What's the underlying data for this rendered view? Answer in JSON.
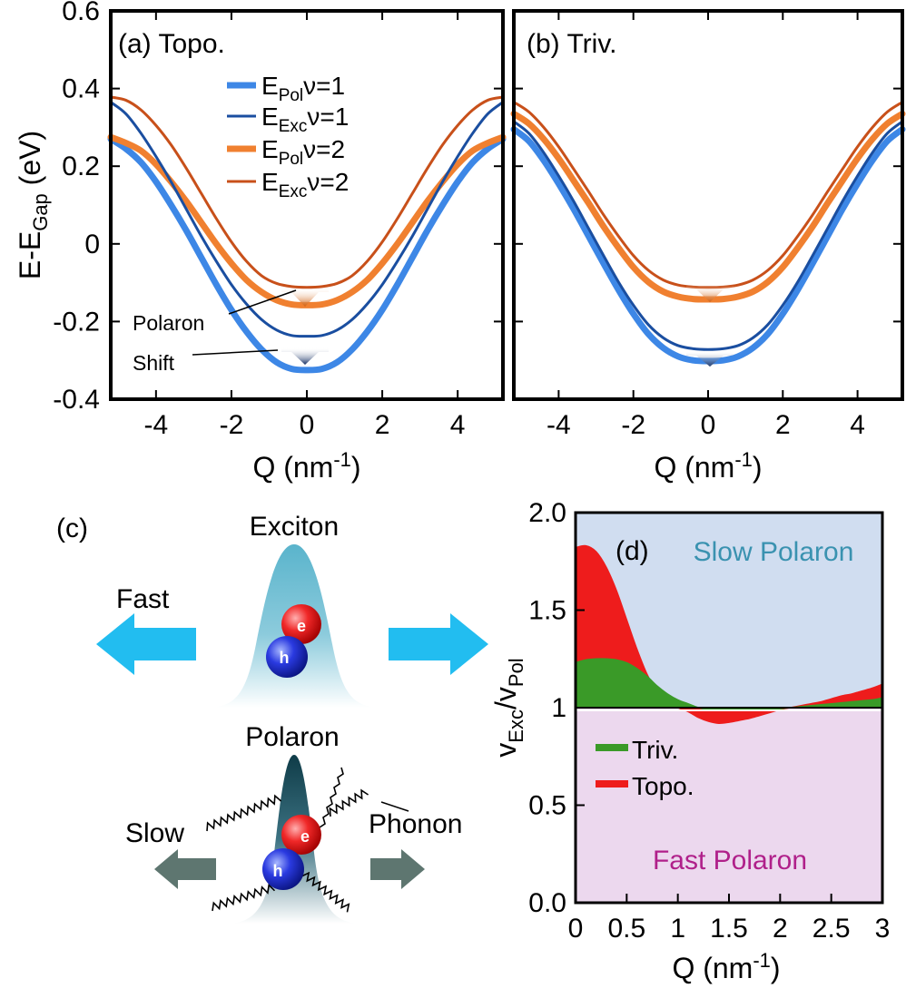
{
  "chart_data": [
    {
      "panel_id": "a",
      "type": "line",
      "tag": "(a) Topo.",
      "xlabel": "Q (nm",
      "xlabel_sup": "-1",
      "xlabel_close": ")",
      "ylabel_base": "E-E",
      "ylabel_sub": "Gap",
      "ylabel_unit": " (eV)",
      "xlim": [
        -5.2,
        5.2
      ],
      "ylim": [
        -0.4,
        0.6
      ],
      "xticks": [
        -4,
        -2,
        0,
        2,
        4
      ],
      "xtick_labels": [
        "-4",
        "-2",
        "0",
        "2",
        "4"
      ],
      "yticks": [
        -0.4,
        -0.2,
        0,
        0.2,
        0.4,
        0.6
      ],
      "ytick_labels": [
        "-0.4",
        "-0.2",
        "0",
        "0.2",
        "0.4",
        "0.6"
      ],
      "x": [
        -5.2,
        -4.8,
        -4.4,
        -4.0,
        -3.6,
        -3.2,
        -2.8,
        -2.4,
        -2.0,
        -1.6,
        -1.2,
        -0.8,
        -0.4,
        0.0,
        0.4,
        0.8,
        1.2,
        1.6,
        2.0,
        2.4,
        2.8,
        3.2,
        3.6,
        4.0,
        4.4,
        4.8,
        5.2
      ],
      "series": [
        {
          "name": "E_Pol ν=1",
          "label_base": "E",
          "label_sub": "Pol",
          "label_rest": "ν=1",
          "color": "#3d87e6",
          "width": 7,
          "values": [
            0.27,
            0.245,
            0.21,
            0.16,
            0.1,
            0.035,
            -0.035,
            -0.105,
            -0.17,
            -0.226,
            -0.272,
            -0.305,
            -0.322,
            -0.325,
            -0.322,
            -0.305,
            -0.272,
            -0.226,
            -0.17,
            -0.105,
            -0.035,
            0.035,
            0.1,
            0.16,
            0.21,
            0.245,
            0.27
          ]
        },
        {
          "name": "E_Exc ν=1",
          "label_base": "E",
          "label_sub": "Exc",
          "label_rest": "ν=1",
          "color": "#1a4ea0",
          "width": 3,
          "values": [
            0.365,
            0.335,
            0.285,
            0.225,
            0.16,
            0.09,
            0.02,
            -0.045,
            -0.105,
            -0.155,
            -0.195,
            -0.222,
            -0.236,
            -0.238,
            -0.236,
            -0.222,
            -0.195,
            -0.155,
            -0.105,
            -0.045,
            0.02,
            0.09,
            0.16,
            0.225,
            0.285,
            0.335,
            0.365
          ]
        },
        {
          "name": "E_Pol ν=2",
          "label_base": "E",
          "label_sub": "Pol",
          "label_rest": "ν=2",
          "color": "#f08030",
          "width": 7,
          "values": [
            0.275,
            0.26,
            0.24,
            0.205,
            0.16,
            0.11,
            0.055,
            0.0,
            -0.05,
            -0.093,
            -0.124,
            -0.145,
            -0.156,
            -0.158,
            -0.156,
            -0.145,
            -0.124,
            -0.093,
            -0.05,
            0.0,
            0.055,
            0.11,
            0.16,
            0.205,
            0.24,
            0.26,
            0.275
          ]
        },
        {
          "name": "E_Exc ν=2",
          "label_base": "E",
          "label_sub": "Exc",
          "label_rest": "ν=2",
          "color": "#c8501a",
          "width": 3,
          "values": [
            0.378,
            0.37,
            0.345,
            0.305,
            0.255,
            0.195,
            0.13,
            0.065,
            0.005,
            -0.045,
            -0.082,
            -0.102,
            -0.11,
            -0.112,
            -0.11,
            -0.102,
            -0.082,
            -0.045,
            0.005,
            0.065,
            0.13,
            0.195,
            0.255,
            0.305,
            0.345,
            0.37,
            0.378
          ]
        }
      ],
      "annotations": [
        "Polaron",
        "Shift"
      ]
    },
    {
      "panel_id": "b",
      "type": "line",
      "tag": "(b) Triv.",
      "xlabel": "Q (nm",
      "xlabel_sup": "-1",
      "xlabel_close": ")",
      "xlim": [
        -5.2,
        5.2
      ],
      "ylim": [
        -0.4,
        0.6
      ],
      "xticks": [
        -4,
        -2,
        0,
        2,
        4
      ],
      "xtick_labels": [
        "-4",
        "-2",
        "0",
        "2",
        "4"
      ],
      "x": [
        -5.2,
        -4.8,
        -4.4,
        -4.0,
        -3.6,
        -3.2,
        -2.8,
        -2.4,
        -2.0,
        -1.6,
        -1.2,
        -0.8,
        -0.4,
        0.0,
        0.4,
        0.8,
        1.2,
        1.6,
        2.0,
        2.4,
        2.8,
        3.2,
        3.6,
        4.0,
        4.4,
        4.8,
        5.2
      ],
      "series": [
        {
          "name": "E_Pol ν=1",
          "color": "#3d87e6",
          "width": 7,
          "values": [
            0.295,
            0.265,
            0.215,
            0.155,
            0.09,
            0.02,
            -0.05,
            -0.118,
            -0.18,
            -0.232,
            -0.268,
            -0.29,
            -0.3,
            -0.302,
            -0.3,
            -0.29,
            -0.268,
            -0.232,
            -0.18,
            -0.118,
            -0.05,
            0.02,
            0.09,
            0.155,
            0.215,
            0.265,
            0.295
          ]
        },
        {
          "name": "E_Exc ν=1",
          "color": "#1a4ea0",
          "width": 3,
          "values": [
            0.315,
            0.285,
            0.235,
            0.175,
            0.11,
            0.04,
            -0.03,
            -0.098,
            -0.158,
            -0.208,
            -0.242,
            -0.262,
            -0.27,
            -0.272,
            -0.27,
            -0.262,
            -0.242,
            -0.208,
            -0.158,
            -0.098,
            -0.03,
            0.04,
            0.11,
            0.175,
            0.235,
            0.285,
            0.315
          ]
        },
        {
          "name": "E_Pol ν=2",
          "color": "#f08030",
          "width": 7,
          "values": [
            0.335,
            0.31,
            0.27,
            0.22,
            0.163,
            0.105,
            0.045,
            -0.01,
            -0.06,
            -0.098,
            -0.123,
            -0.136,
            -0.142,
            -0.143,
            -0.142,
            -0.136,
            -0.123,
            -0.098,
            -0.06,
            -0.01,
            0.045,
            0.105,
            0.163,
            0.22,
            0.27,
            0.31,
            0.335
          ]
        },
        {
          "name": "E_Exc ν=2",
          "color": "#c8501a",
          "width": 3,
          "values": [
            0.365,
            0.34,
            0.3,
            0.25,
            0.193,
            0.135,
            0.075,
            0.02,
            -0.03,
            -0.068,
            -0.093,
            -0.106,
            -0.111,
            -0.112,
            -0.111,
            -0.106,
            -0.093,
            -0.068,
            -0.03,
            0.02,
            0.075,
            0.135,
            0.193,
            0.25,
            0.3,
            0.34,
            0.365
          ]
        }
      ]
    },
    {
      "panel_id": "d",
      "type": "area",
      "tag": "(d)",
      "xlabel": "Q (nm",
      "xlabel_sup": "-1",
      "xlabel_close": ")",
      "ylabel_v1": "v",
      "ylabel_sub1": "Exc",
      "ylabel_slash": "/v",
      "ylabel_sub2": "Pol",
      "xlim": [
        0,
        3
      ],
      "ylim": [
        0,
        2
      ],
      "xticks": [
        0,
        0.5,
        1,
        1.5,
        2,
        2.5,
        3
      ],
      "xtick_labels": [
        "0",
        "0.5",
        "1",
        "1.5",
        "2",
        "2.5",
        "3"
      ],
      "yticks": [
        0,
        0.5,
        1,
        1.5,
        2
      ],
      "ytick_labels": [
        "0.0",
        "0.5",
        "1",
        "1.5",
        "2.0"
      ],
      "region_upper_label": "Slow Polaron",
      "region_lower_label": "Fast Polaron",
      "region_upper_color": "#d0ddf0",
      "region_lower_color": "#ecd8ee",
      "region_upper_text_color": "#3a92b0",
      "region_lower_text_color": "#b0208a",
      "x": [
        0,
        0.1,
        0.2,
        0.3,
        0.4,
        0.5,
        0.6,
        0.7,
        0.8,
        0.9,
        1.0,
        1.1,
        1.2,
        1.3,
        1.4,
        1.5,
        1.6,
        1.7,
        1.8,
        1.9,
        2.0,
        2.1,
        2.2,
        2.3,
        2.4,
        2.5,
        2.6,
        2.7,
        2.8,
        2.9,
        3.0
      ],
      "series": [
        {
          "name": "Topo.",
          "color": "#ee1c1c",
          "values": [
            1.82,
            1.83,
            1.8,
            1.72,
            1.6,
            1.45,
            1.3,
            1.17,
            1.08,
            1.03,
            1.0,
            0.98,
            0.95,
            0.93,
            0.92,
            0.925,
            0.935,
            0.945,
            0.96,
            0.975,
            0.99,
            1.0,
            1.01,
            1.02,
            1.03,
            1.045,
            1.06,
            1.07,
            1.085,
            1.1,
            1.12
          ]
        },
        {
          "name": "Triv.",
          "color": "#3a9a28",
          "values": [
            1.23,
            1.245,
            1.25,
            1.25,
            1.245,
            1.23,
            1.2,
            1.16,
            1.11,
            1.07,
            1.04,
            1.02,
            1.0,
            0.99,
            0.985,
            0.985,
            0.985,
            0.988,
            0.99,
            0.993,
            0.995,
            1.0,
            1.005,
            1.01,
            1.015,
            1.02,
            1.025,
            1.03,
            1.035,
            1.04,
            1.05
          ]
        }
      ]
    }
  ],
  "schematic": {
    "tag": "(c)",
    "exciton_title": "Exciton",
    "polaron_title": "Polaron",
    "fast_label": "Fast",
    "slow_label": "Slow",
    "phonon_label": "Phonon",
    "electron_label": "e",
    "hole_label": "h",
    "fast_arrow_color": "#22bdf0",
    "slow_arrow_color": "#5e7670"
  }
}
